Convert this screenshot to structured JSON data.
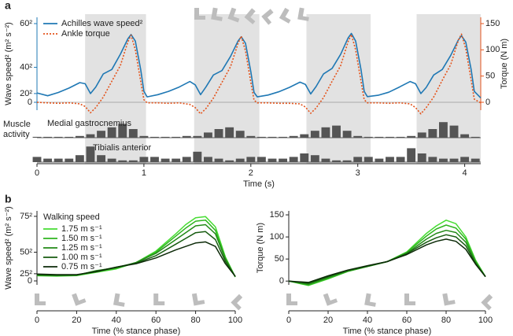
{
  "chart_data": [
    {
      "type": "line",
      "panel_label": "a",
      "xlabel": "Time (s)",
      "ylabel": "Wave speed² (m² s⁻²)",
      "y2label": "Torque (N m)",
      "xlim": [
        0,
        4.15
      ],
      "xticks": [
        0,
        1,
        2,
        3,
        4
      ],
      "ylim": [
        -540,
        3888
      ],
      "yticks": [
        0,
        {
          "value": 400,
          "label": "20²"
        },
        {
          "value": 1600,
          "label": "40²"
        },
        {
          "value": 3600,
          "label": "60²"
        }
      ],
      "y2lim": [
        -22.5,
        162
      ],
      "y2ticks": [
        0,
        50,
        100,
        150
      ],
      "shaded_x": [
        [
          0.45,
          1.02
        ],
        [
          1.47,
          2.08
        ],
        [
          2.52,
          3.12
        ],
        [
          3.55,
          4.15
        ]
      ],
      "legend": "upper left",
      "x": [
        0,
        0.1,
        0.2,
        0.3,
        0.4,
        0.45,
        0.5,
        0.55,
        0.62,
        0.7,
        0.78,
        0.85,
        0.88,
        0.92,
        0.97,
        1.0,
        1.03,
        1.13,
        1.23,
        1.33,
        1.43,
        1.48,
        1.53,
        1.58,
        1.65,
        1.73,
        1.81,
        1.88,
        1.91,
        1.95,
        2.0,
        2.03,
        2.06,
        2.16,
        2.26,
        2.36,
        2.46,
        2.51,
        2.56,
        2.61,
        2.68,
        2.76,
        2.84,
        2.91,
        2.94,
        2.98,
        3.03,
        3.06,
        3.09,
        3.19,
        3.29,
        3.39,
        3.49,
        3.54,
        3.59,
        3.64,
        3.71,
        3.79,
        3.87,
        3.94,
        3.97,
        4.01,
        4.06,
        4.09,
        4.15
      ],
      "series": [
        {
          "name": "Achilles wave speed²",
          "color": "#1f78b4",
          "style": "solid",
          "values": [
            430,
            300,
            450,
            650,
            900,
            850,
            400,
            700,
            1300,
            1500,
            2200,
            2900,
            3100,
            2800,
            1500,
            500,
            250,
            350,
            500,
            700,
            950,
            800,
            350,
            700,
            1250,
            1450,
            2100,
            2800,
            3000,
            2700,
            1400,
            450,
            250,
            330,
            480,
            680,
            920,
            820,
            380,
            720,
            1300,
            1550,
            2200,
            2950,
            3150,
            2800,
            1500,
            500,
            260,
            320,
            460,
            700,
            950,
            850,
            400,
            680,
            1250,
            1500,
            2150,
            2850,
            3050,
            2750,
            1500,
            500,
            200
          ]
        },
        {
          "name": "Ankle torque",
          "color": "#e4541c",
          "style": "dotted",
          "axis": "y2",
          "values": [
            0,
            -1,
            -2,
            -1,
            -3,
            -8,
            -20,
            -10,
            10,
            40,
            70,
            115,
            128,
            100,
            40,
            5,
            -1,
            -1,
            -2,
            -1,
            -4,
            -10,
            -22,
            -12,
            8,
            38,
            68,
            112,
            126,
            98,
            38,
            4,
            -1,
            -1,
            -2,
            -2,
            -3,
            -9,
            -21,
            -11,
            9,
            40,
            70,
            116,
            129,
            100,
            40,
            5,
            -1,
            -1,
            -2,
            -1,
            -3,
            -10,
            -22,
            -10,
            10,
            42,
            72,
            118,
            130,
            102,
            42,
            6,
            -1
          ]
        }
      ],
      "muscle_activity": {
        "label": "Muscle activity",
        "x": [
          0,
          0.1,
          0.2,
          0.3,
          0.4,
          0.5,
          0.6,
          0.7,
          0.8,
          0.9,
          1.0,
          1.1,
          1.2,
          1.3,
          1.4,
          1.5,
          1.6,
          1.7,
          1.8,
          1.9,
          2.0,
          2.1,
          2.2,
          2.3,
          2.4,
          2.5,
          2.6,
          2.7,
          2.8,
          2.9,
          3.0,
          3.1,
          3.2,
          3.3,
          3.4,
          3.5,
          3.6,
          3.7,
          3.8,
          3.9,
          4.0,
          4.1
        ],
        "series": [
          {
            "name": "Medial gastrocnemius",
            "values": [
              0.05,
              0.05,
              0.05,
              0.05,
              0.1,
              0.2,
              0.4,
              0.6,
              0.8,
              0.5,
              0.1,
              0.05,
              0.05,
              0.05,
              0.1,
              0.1,
              0.3,
              0.5,
              0.6,
              0.4,
              0.1,
              0.05,
              0.05,
              0.05,
              0.1,
              0.2,
              0.4,
              0.6,
              0.7,
              0.4,
              0.1,
              0.05,
              0.05,
              0.05,
              0.05,
              0.1,
              0.3,
              0.5,
              0.9,
              0.7,
              0.2,
              0.05
            ]
          },
          {
            "name": "Tibialis anterior",
            "values": [
              0.3,
              0.2,
              0.2,
              0.2,
              0.4,
              0.9,
              0.4,
              0.2,
              0.1,
              0.1,
              0.3,
              0.3,
              0.2,
              0.2,
              0.3,
              0.6,
              0.3,
              0.2,
              0.1,
              0.2,
              0.3,
              0.3,
              0.2,
              0.2,
              0.3,
              0.5,
              0.4,
              0.2,
              0.1,
              0.1,
              0.3,
              0.3,
              0.2,
              0.3,
              0.3,
              0.8,
              0.5,
              0.3,
              0.2,
              0.2,
              0.3,
              0.2
            ]
          }
        ]
      }
    },
    {
      "type": "line",
      "panel_label": "b",
      "xlabel": "Time (% stance phase)",
      "ylabel": "Wave speed² (m² s⁻²)",
      "xlim": [
        0,
        100
      ],
      "xticks": [
        0,
        20,
        40,
        60,
        80,
        100
      ],
      "ylim": [
        -2400,
        6100
      ],
      "yticks": [
        0,
        {
          "value": 625,
          "label": "25²"
        },
        {
          "value": 2500,
          "label": "50²"
        },
        {
          "value": 5625,
          "label": "75²"
        }
      ],
      "legend_title": "Walking speed",
      "legend": "upper left",
      "x": [
        0,
        10,
        20,
        30,
        40,
        50,
        60,
        70,
        75,
        80,
        85,
        90,
        95,
        100
      ],
      "series": [
        {
          "name": "1.75 m s⁻¹",
          "color": "#46dc32",
          "values": [
            450,
            420,
            460,
            750,
            1050,
            1600,
            2600,
            4100,
            4900,
            5500,
            5600,
            4700,
            2100,
            350
          ]
        },
        {
          "name": "1.50 m s⁻¹",
          "color": "#2fb51f",
          "values": [
            480,
            450,
            480,
            800,
            1100,
            1600,
            2500,
            3900,
            4600,
            5200,
            5300,
            4400,
            2000,
            350
          ]
        },
        {
          "name": "1.25 m s⁻¹",
          "color": "#228a17",
          "values": [
            500,
            480,
            500,
            900,
            1150,
            1600,
            2400,
            3600,
            4200,
            4800,
            4900,
            4100,
            1900,
            350
          ]
        },
        {
          "name": "1.00 m s⁻¹",
          "color": "#175c10",
          "values": [
            550,
            500,
            520,
            850,
            1200,
            1550,
            2200,
            3200,
            3700,
            4200,
            4300,
            3600,
            1700,
            400
          ]
        },
        {
          "name": "0.75 m s⁻¹",
          "color": "#0c2a08",
          "values": [
            600,
            550,
            550,
            800,
            1200,
            1500,
            2000,
            2700,
            3000,
            3300,
            3400,
            3000,
            1500,
            400
          ]
        }
      ]
    },
    {
      "type": "line",
      "xlabel": "Time (% stance phase)",
      "ylabel": "Torque (N m)",
      "xlim": [
        0,
        100
      ],
      "xticks": [
        0,
        20,
        40,
        60,
        80,
        100
      ],
      "ylim": [
        -62,
        159
      ],
      "yticks": [
        0,
        50,
        100,
        150
      ],
      "x": [
        0,
        10,
        20,
        30,
        40,
        50,
        60,
        70,
        75,
        80,
        85,
        90,
        95,
        100
      ],
      "series": [
        {
          "name": "1.75 m s⁻¹",
          "color": "#46dc32",
          "values": [
            0,
            -10,
            5,
            22,
            33,
            44,
            66,
            108,
            125,
            138,
            130,
            100,
            47,
            10
          ]
        },
        {
          "name": "1.50 m s⁻¹",
          "color": "#2fb51f",
          "values": [
            0,
            -9,
            6,
            22,
            33,
            44,
            65,
            102,
            118,
            127,
            120,
            95,
            45,
            10
          ]
        },
        {
          "name": "1.25 m s⁻¹",
          "color": "#228a17",
          "values": [
            0,
            -7,
            8,
            23,
            33,
            44,
            63,
            95,
            108,
            115,
            110,
            88,
            42,
            10
          ]
        },
        {
          "name": "1.00 m s⁻¹",
          "color": "#175c10",
          "values": [
            0,
            -5,
            10,
            24,
            34,
            44,
            62,
            88,
            98,
            105,
            100,
            80,
            40,
            10
          ]
        },
        {
          "name": "0.75 m s⁻¹",
          "color": "#0c2a08",
          "values": [
            0,
            -3,
            12,
            25,
            35,
            44,
            60,
            82,
            90,
            95,
            90,
            72,
            38,
            10
          ]
        }
      ]
    }
  ]
}
